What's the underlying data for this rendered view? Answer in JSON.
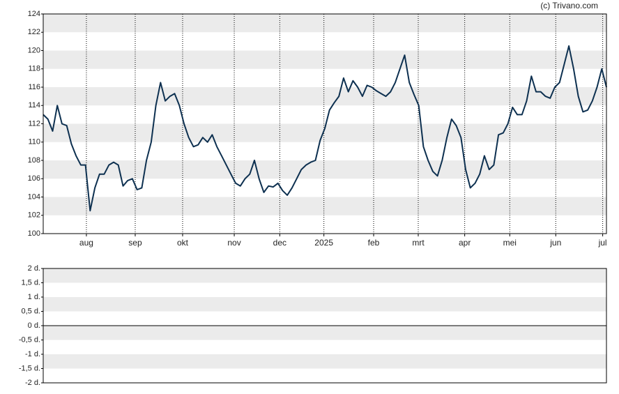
{
  "credit": "(c) Trivano.com",
  "chart_data": [
    {
      "type": "line",
      "series": [
        {
          "color": "#0d3050",
          "values": [
            113,
            112.5,
            111.2,
            114,
            112,
            111.8,
            109.8,
            108.5,
            107.5,
            107.5,
            102.5,
            105,
            106.5,
            106.5,
            107.5,
            107.8,
            107.5,
            105.2,
            105.8,
            106,
            104.8,
            105,
            108,
            110,
            114,
            116.5,
            114.5,
            115,
            115.3,
            114,
            112,
            110.5,
            109.5,
            109.7,
            110.5,
            110,
            110.8,
            109.5,
            108.5,
            107.5,
            106.5,
            105.5,
            105.2,
            106,
            106.5,
            108,
            106,
            104.5,
            105.2,
            105.1,
            105.5,
            104.7,
            104.2,
            105,
            106,
            107,
            107.5,
            107.8,
            108,
            110.2,
            111.5,
            113.5,
            114.3,
            115,
            117,
            115.5,
            116.7,
            116,
            115,
            116.2,
            116,
            115.6,
            115.3,
            115,
            115.5,
            116.5,
            118,
            119.5,
            116.5,
            115.2,
            114,
            109.5,
            108,
            106.8,
            106.3,
            108,
            110.5,
            112.5,
            111.8,
            110.5,
            107,
            105,
            105.5,
            106.5,
            108.5,
            107,
            107.5,
            110.8,
            111,
            112,
            113.8,
            113,
            113,
            114.5,
            117.2,
            115.5,
            115.5,
            115,
            114.8,
            116,
            116.5,
            118.5,
            120.5,
            118,
            115,
            113.3,
            113.5,
            114.5,
            116,
            118,
            116
          ]
        }
      ],
      "xlim": [
        0,
        120
      ],
      "xticks": [
        {
          "value": 9.2,
          "label": "aug"
        },
        {
          "value": 19.6,
          "label": "sep"
        },
        {
          "value": 29.7,
          "label": "okt"
        },
        {
          "value": 40.7,
          "label": "nov"
        },
        {
          "value": 50.4,
          "label": "dec"
        },
        {
          "value": 59.8,
          "label": "2025"
        },
        {
          "value": 70.4,
          "label": "feb"
        },
        {
          "value": 79.9,
          "label": "mrt"
        },
        {
          "value": 89.8,
          "label": "apr"
        },
        {
          "value": 99.4,
          "label": "mei"
        },
        {
          "value": 109.2,
          "label": "jun"
        },
        {
          "value": 119.2,
          "label": "jul"
        }
      ],
      "ylim": [
        100,
        124
      ],
      "yticks": [
        100,
        102,
        104,
        106,
        108,
        110,
        112,
        114,
        116,
        118,
        120,
        122,
        124
      ]
    },
    {
      "type": "line",
      "ylim": [
        -2,
        2
      ],
      "yticks": [
        {
          "value": -2,
          "label": "-2 d."
        },
        {
          "value": -1.5,
          "label": "-1,5 d."
        },
        {
          "value": -1,
          "label": "-1 d."
        },
        {
          "value": -0.5,
          "label": "-0,5 d."
        },
        {
          "value": 0,
          "label": "0 d."
        },
        {
          "value": 0.5,
          "label": "0,5 d."
        },
        {
          "value": 1,
          "label": "1 d."
        },
        {
          "value": 1.5,
          "label": "1,5 d."
        },
        {
          "value": 2,
          "label": "2 d."
        }
      ]
    }
  ]
}
